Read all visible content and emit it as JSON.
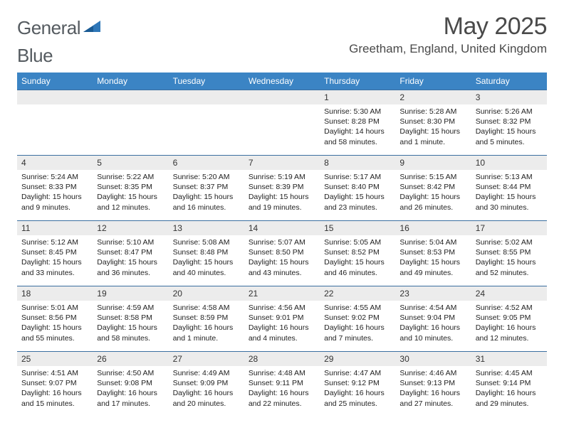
{
  "brand": {
    "word1": "General",
    "word2": "Blue",
    "accent_color": "#2f77b8",
    "text_color": "#555b60"
  },
  "title": "May 2025",
  "location": "Greetham, England, United Kingdom",
  "header_bg": "#3b84c4",
  "header_fg": "#ffffff",
  "daynum_bg": "#ececec",
  "border_color": "#3b6fa0",
  "days_of_week": [
    "Sunday",
    "Monday",
    "Tuesday",
    "Wednesday",
    "Thursday",
    "Friday",
    "Saturday"
  ],
  "weeks": [
    [
      null,
      null,
      null,
      null,
      {
        "n": "1",
        "sr": "5:30 AM",
        "ss": "8:28 PM",
        "dl": "14 hours and 58 minutes."
      },
      {
        "n": "2",
        "sr": "5:28 AM",
        "ss": "8:30 PM",
        "dl": "15 hours and 1 minute."
      },
      {
        "n": "3",
        "sr": "5:26 AM",
        "ss": "8:32 PM",
        "dl": "15 hours and 5 minutes."
      }
    ],
    [
      {
        "n": "4",
        "sr": "5:24 AM",
        "ss": "8:33 PM",
        "dl": "15 hours and 9 minutes."
      },
      {
        "n": "5",
        "sr": "5:22 AM",
        "ss": "8:35 PM",
        "dl": "15 hours and 12 minutes."
      },
      {
        "n": "6",
        "sr": "5:20 AM",
        "ss": "8:37 PM",
        "dl": "15 hours and 16 minutes."
      },
      {
        "n": "7",
        "sr": "5:19 AM",
        "ss": "8:39 PM",
        "dl": "15 hours and 19 minutes."
      },
      {
        "n": "8",
        "sr": "5:17 AM",
        "ss": "8:40 PM",
        "dl": "15 hours and 23 minutes."
      },
      {
        "n": "9",
        "sr": "5:15 AM",
        "ss": "8:42 PM",
        "dl": "15 hours and 26 minutes."
      },
      {
        "n": "10",
        "sr": "5:13 AM",
        "ss": "8:44 PM",
        "dl": "15 hours and 30 minutes."
      }
    ],
    [
      {
        "n": "11",
        "sr": "5:12 AM",
        "ss": "8:45 PM",
        "dl": "15 hours and 33 minutes."
      },
      {
        "n": "12",
        "sr": "5:10 AM",
        "ss": "8:47 PM",
        "dl": "15 hours and 36 minutes."
      },
      {
        "n": "13",
        "sr": "5:08 AM",
        "ss": "8:48 PM",
        "dl": "15 hours and 40 minutes."
      },
      {
        "n": "14",
        "sr": "5:07 AM",
        "ss": "8:50 PM",
        "dl": "15 hours and 43 minutes."
      },
      {
        "n": "15",
        "sr": "5:05 AM",
        "ss": "8:52 PM",
        "dl": "15 hours and 46 minutes."
      },
      {
        "n": "16",
        "sr": "5:04 AM",
        "ss": "8:53 PM",
        "dl": "15 hours and 49 minutes."
      },
      {
        "n": "17",
        "sr": "5:02 AM",
        "ss": "8:55 PM",
        "dl": "15 hours and 52 minutes."
      }
    ],
    [
      {
        "n": "18",
        "sr": "5:01 AM",
        "ss": "8:56 PM",
        "dl": "15 hours and 55 minutes."
      },
      {
        "n": "19",
        "sr": "4:59 AM",
        "ss": "8:58 PM",
        "dl": "15 hours and 58 minutes."
      },
      {
        "n": "20",
        "sr": "4:58 AM",
        "ss": "8:59 PM",
        "dl": "16 hours and 1 minute."
      },
      {
        "n": "21",
        "sr": "4:56 AM",
        "ss": "9:01 PM",
        "dl": "16 hours and 4 minutes."
      },
      {
        "n": "22",
        "sr": "4:55 AM",
        "ss": "9:02 PM",
        "dl": "16 hours and 7 minutes."
      },
      {
        "n": "23",
        "sr": "4:54 AM",
        "ss": "9:04 PM",
        "dl": "16 hours and 10 minutes."
      },
      {
        "n": "24",
        "sr": "4:52 AM",
        "ss": "9:05 PM",
        "dl": "16 hours and 12 minutes."
      }
    ],
    [
      {
        "n": "25",
        "sr": "4:51 AM",
        "ss": "9:07 PM",
        "dl": "16 hours and 15 minutes."
      },
      {
        "n": "26",
        "sr": "4:50 AM",
        "ss": "9:08 PM",
        "dl": "16 hours and 17 minutes."
      },
      {
        "n": "27",
        "sr": "4:49 AM",
        "ss": "9:09 PM",
        "dl": "16 hours and 20 minutes."
      },
      {
        "n": "28",
        "sr": "4:48 AM",
        "ss": "9:11 PM",
        "dl": "16 hours and 22 minutes."
      },
      {
        "n": "29",
        "sr": "4:47 AM",
        "ss": "9:12 PM",
        "dl": "16 hours and 25 minutes."
      },
      {
        "n": "30",
        "sr": "4:46 AM",
        "ss": "9:13 PM",
        "dl": "16 hours and 27 minutes."
      },
      {
        "n": "31",
        "sr": "4:45 AM",
        "ss": "9:14 PM",
        "dl": "16 hours and 29 minutes."
      }
    ]
  ],
  "labels": {
    "sunrise": "Sunrise: ",
    "sunset": "Sunset: ",
    "daylight": "Daylight: "
  }
}
